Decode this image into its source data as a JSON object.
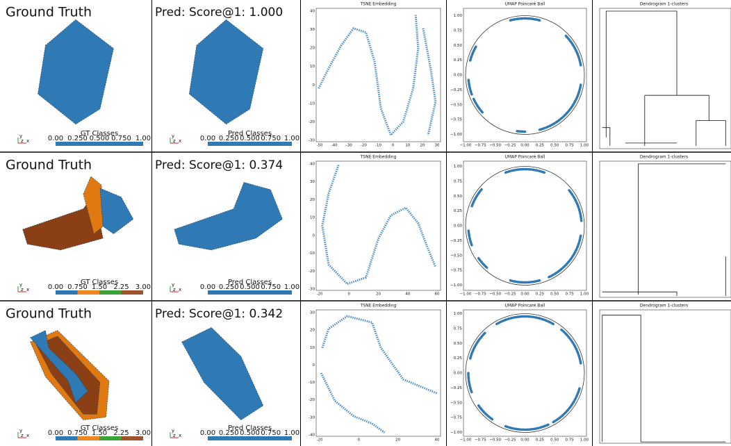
{
  "rows": [
    {
      "gt": {
        "title": "Ground Truth",
        "colorbar_label": "GT Classes",
        "colorbar_ticks": [
          "0.00",
          "0.250",
          "0.500",
          "0.750",
          "1.00"
        ],
        "colorbar_colors": [
          "#2f79b5"
        ]
      },
      "pred": {
        "title": "Pred: Score@1: 1.000",
        "colorbar_label": "Pred Classes",
        "colorbar_ticks": [
          "0.00",
          "0.250",
          "0.500",
          "0.750",
          "1.00"
        ]
      },
      "triad": [
        "y",
        "z",
        "x"
      ],
      "tsne": {
        "title": "TSNE Embedding",
        "xticks": [
          -50,
          -40,
          -30,
          -20,
          -10,
          0,
          10,
          20,
          30
        ],
        "yticks": [
          -30,
          -20,
          -10,
          0,
          10,
          20,
          30,
          40
        ]
      },
      "umap": {
        "title": "UMAP Poincaré Ball",
        "xticks": [
          "−1.00",
          "−0.75",
          "−0.50",
          "−0.25",
          "0.00",
          "0.25",
          "0.50",
          "0.75",
          "1.00"
        ],
        "yticks": [
          "−1.00",
          "−0.75",
          "−0.50",
          "−0.25",
          "0.00",
          "0.25",
          "0.50",
          "0.75",
          "1.00"
        ]
      },
      "dendrogram": {
        "title": "Dendrogram 1-clusters"
      }
    },
    {
      "gt": {
        "title": "Ground Truth",
        "colorbar_label": "GT Classes",
        "colorbar_ticks": [
          "0.00",
          "0.750",
          "1.50",
          "2.25",
          "3.00"
        ],
        "colorbar_colors": [
          "#2f79b5",
          "#f2861d",
          "#3aa43a",
          "#a0522d"
        ]
      },
      "pred": {
        "title": "Pred: Score@1: 0.374",
        "colorbar_label": "Pred Classes",
        "colorbar_ticks": [
          "0.00",
          "0.250",
          "0.500",
          "0.750",
          "1.00"
        ]
      },
      "triad": [
        "y",
        "z",
        "x"
      ],
      "tsne": {
        "title": "TSNE Embedding",
        "xticks": [
          -20,
          0,
          20,
          40,
          60
        ],
        "yticks": [
          -30,
          -20,
          -10,
          0,
          10,
          20,
          30,
          40
        ]
      },
      "umap": {
        "title": "UMAP Poincaré Ball",
        "xticks": [
          "−1.00",
          "−0.75",
          "−0.50",
          "−0.25",
          "0.00",
          "0.25",
          "0.50",
          "0.75",
          "1.00"
        ],
        "yticks": [
          "−1.00",
          "−0.75",
          "−0.50",
          "−0.25",
          "0.00",
          "0.25",
          "0.50",
          "0.75",
          "1.00"
        ]
      },
      "dendrogram": {
        "title": "Dendrogram 1-clusters"
      }
    },
    {
      "gt": {
        "title": "Ground Truth",
        "colorbar_label": "GT Classes",
        "colorbar_ticks": [
          "0.00",
          "0.750",
          "1.50",
          "2.25",
          "3.00"
        ],
        "colorbar_colors": [
          "#2f79b5",
          "#f2861d",
          "#3aa43a",
          "#a0522d"
        ]
      },
      "pred": {
        "title": "Pred: Score@1: 0.342",
        "colorbar_label": "Pred Classes",
        "colorbar_ticks": [
          "0.00",
          "0.250",
          "0.500",
          "0.750",
          "1.00"
        ]
      },
      "triad": [
        "y",
        "z",
        "x"
      ],
      "tsne": {
        "title": "TSNE Embedding",
        "xticks": [
          -20,
          0,
          20,
          40
        ],
        "yticks": [
          -40,
          -30,
          -20,
          -10,
          0,
          10,
          20,
          30
        ]
      },
      "umap": {
        "title": "UMAP Poincaré Ball",
        "xticks": [
          "−1.00",
          "−0.75",
          "−0.50",
          "−0.25",
          "0.00",
          "0.25",
          "0.50",
          "0.75",
          "1.00"
        ],
        "yticks": [
          "−1.00",
          "−0.75",
          "−0.50",
          "−0.25",
          "0.00",
          "0.25",
          "0.50",
          "0.75",
          "1.00"
        ]
      },
      "dendrogram": {
        "title": "Dendrogram 1-clusters"
      }
    }
  ]
}
